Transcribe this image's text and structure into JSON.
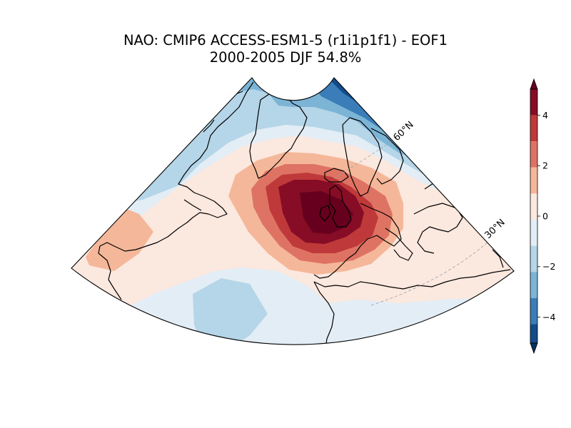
{
  "title": {
    "line1": "NAO: CMIP6 ACCESS-ESM1-5 (r1i1p1f1) - EOF1",
    "line2": "2000-2005 DJF 54.8%"
  },
  "map": {
    "projection": "conic sector, North Atlantic / Europe",
    "gridline_labels": [
      "60°N",
      "30°N"
    ],
    "field": "EOF1 sea-level pressure pattern",
    "pattern": {
      "positive_center": "south of Iceland / over the British Isles",
      "positive_max_level": 5,
      "negative_center": "Arctic north of Scandinavia",
      "negative_min_level": -5,
      "secondary_negative": "central subtropical Atlantic"
    }
  },
  "colorbar": {
    "ticks": [
      "−4",
      "−2",
      "0",
      "2",
      "4"
    ],
    "range": [
      -5,
      5
    ],
    "levels": [
      -5,
      -4,
      -3,
      -2,
      -1,
      1,
      2,
      3,
      4,
      5
    ],
    "extend": "both",
    "colors": {
      "below": "#053061",
      "b1": "#134c88",
      "b2": "#3a7db8",
      "b3": "#7cb4d6",
      "b4": "#b5d5e8",
      "b5": "#e3edf5",
      "r1": "#fbe8df",
      "r2": "#f5b799",
      "r3": "#de7363",
      "r4": "#c0393a",
      "r5": "#860d25",
      "above": "#67001f"
    }
  }
}
